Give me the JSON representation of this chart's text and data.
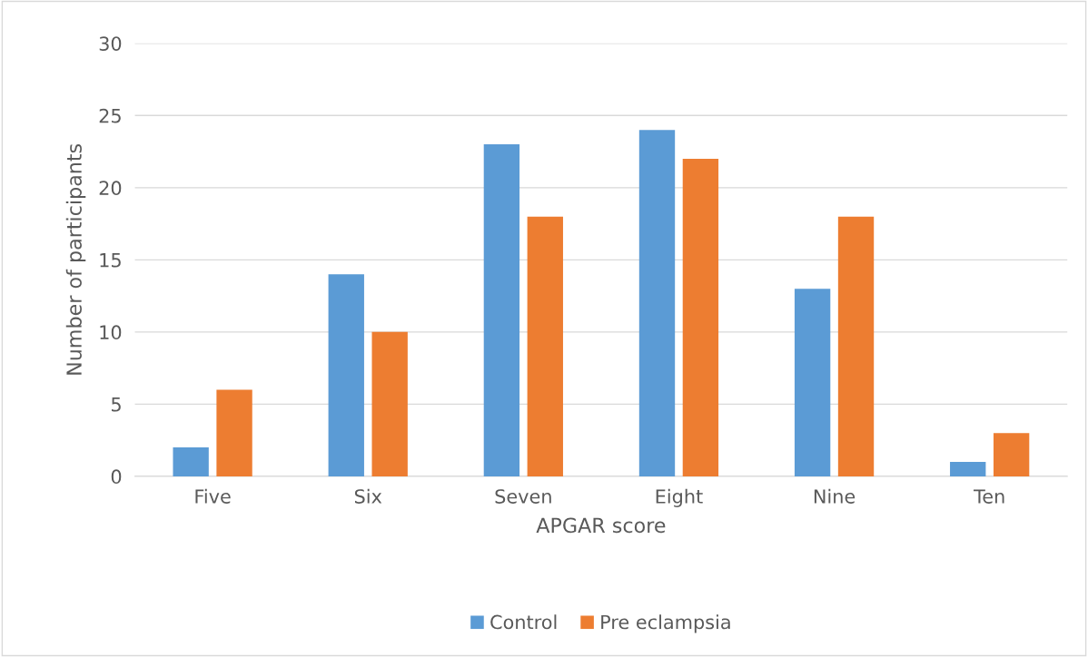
{
  "chart_data": {
    "type": "bar",
    "xlabel": "APGAR score",
    "ylabel": "Number of participants",
    "categories": [
      "Five",
      "Six",
      "Seven",
      "Eight",
      "Nine",
      "Ten"
    ],
    "series": [
      {
        "name": "Control",
        "color": "#5b9bd5",
        "values": [
          2,
          14,
          23,
          24,
          13,
          1
        ]
      },
      {
        "name": "Pre eclampsia",
        "color": "#ed7d31",
        "values": [
          6,
          10,
          18,
          22,
          18,
          3
        ]
      }
    ],
    "ylim": [
      0,
      30
    ],
    "yticks": [
      0,
      5,
      10,
      15,
      20,
      25,
      30
    ],
    "grid": "y",
    "legend": "bottom"
  }
}
